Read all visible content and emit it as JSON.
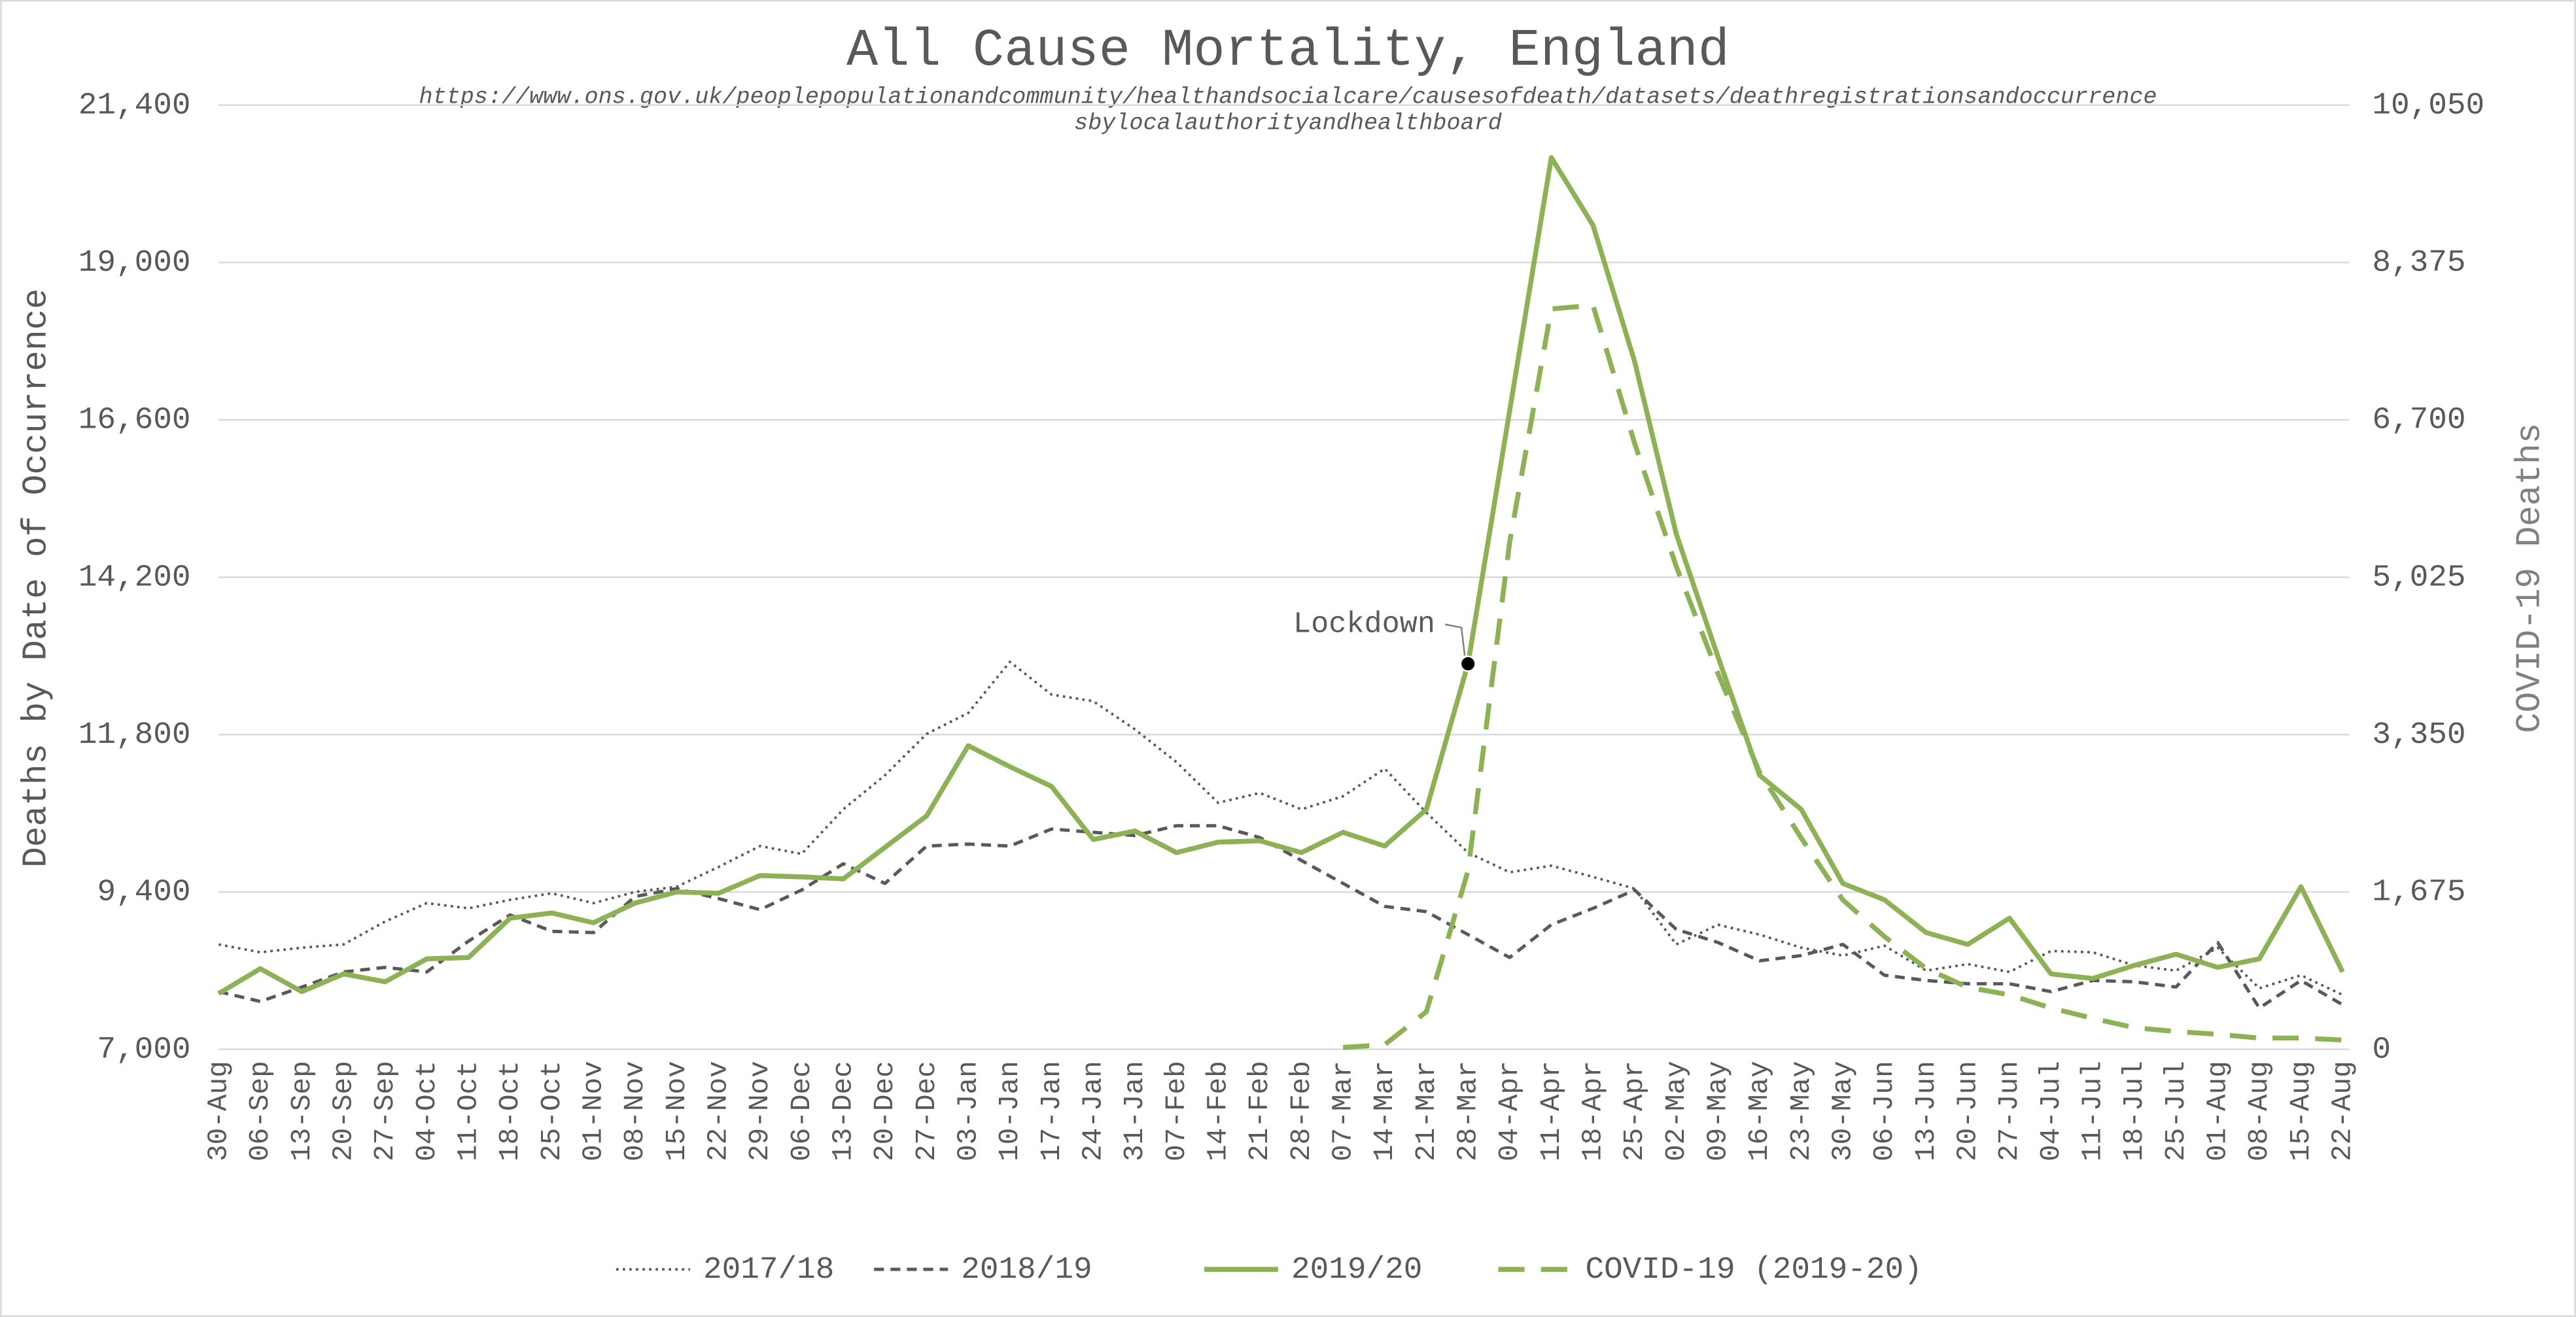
{
  "chart_data": {
    "type": "line",
    "title": "All Cause Mortality, England",
    "subtitle": [
      "https://www.ons.gov.uk/peoplepopulationandcommunity/healthandsocialcare/causesofdeath/datasets/deathregistrationsandoccurrence",
      "sbylocalauthorityandhealthboard"
    ],
    "y_label": "Deaths by Date of Occurrence",
    "y2_label": "COVID-19 Deaths",
    "categories": [
      "30-Aug",
      "06-Sep",
      "13-Sep",
      "20-Sep",
      "27-Sep",
      "04-Oct",
      "11-Oct",
      "18-Oct",
      "25-Oct",
      "01-Nov",
      "08-Nov",
      "15-Nov",
      "22-Nov",
      "29-Nov",
      "06-Dec",
      "13-Dec",
      "20-Dec",
      "27-Dec",
      "03-Jan",
      "10-Jan",
      "17-Jan",
      "24-Jan",
      "31-Jan",
      "07-Feb",
      "14-Feb",
      "21-Feb",
      "28-Feb",
      "07-Mar",
      "14-Mar",
      "21-Mar",
      "28-Mar",
      "04-Apr",
      "11-Apr",
      "18-Apr",
      "25-Apr",
      "02-May",
      "09-May",
      "16-May",
      "23-May",
      "30-May",
      "06-Jun",
      "13-Jun",
      "20-Jun",
      "27-Jun",
      "04-Jul",
      "11-Jul",
      "18-Jul",
      "25-Jul",
      "01-Aug",
      "08-Aug",
      "15-Aug",
      "22-Aug"
    ],
    "ylim": [
      7000,
      21400
    ],
    "yticks": [
      {
        "value": 7000,
        "label": "7,000"
      },
      {
        "value": 9400,
        "label": "9,400"
      },
      {
        "value": 11800,
        "label": "11,800"
      },
      {
        "value": 14200,
        "label": "14,200"
      },
      {
        "value": 16600,
        "label": "16,600"
      },
      {
        "value": 19000,
        "label": "19,000"
      },
      {
        "value": 21400,
        "label": "21,400"
      }
    ],
    "y2lim": [
      0,
      10050
    ],
    "y2ticks": [
      0,
      {
        "value": 1675,
        "label": "1,675"
      },
      {
        "value": 3350,
        "label": "3,350"
      },
      {
        "value": 5025,
        "label": "5,025"
      },
      {
        "value": 6700,
        "label": "6,700"
      },
      {
        "value": 8375,
        "label": "8,375"
      },
      {
        "value": 10050,
        "label": "10,050"
      }
    ],
    "grid": true,
    "legend": "bottom",
    "series": [
      {
        "name": "2017/18",
        "color": "#595959",
        "style": "dotted",
        "values": [
          8600,
          8480,
          8550,
          8600,
          8950,
          9230,
          9150,
          9280,
          9380,
          9230,
          9400,
          9480,
          9780,
          10100,
          9980,
          10660,
          11180,
          11810,
          12130,
          12910,
          12410,
          12310,
          11880,
          11380,
          10760,
          10910,
          10660,
          10860,
          11280,
          10610,
          10000,
          9700,
          9800,
          9630,
          9450,
          8600,
          8900,
          8750,
          8550,
          8430,
          8580,
          8200,
          8300,
          8180,
          8500,
          8480,
          8280,
          8200,
          8550,
          7930,
          8130,
          7830
        ]
      },
      {
        "name": "2018/19",
        "color": "#595959",
        "style": "dashed",
        "values": [
          7880,
          7730,
          7950,
          8180,
          8250,
          8180,
          8650,
          9050,
          8800,
          8780,
          9330,
          9450,
          9300,
          9130,
          9430,
          9830,
          9530,
          10100,
          10130,
          10100,
          10360,
          10310,
          10260,
          10410,
          10410,
          10230,
          9880,
          9530,
          9180,
          9100,
          8750,
          8400,
          8900,
          9150,
          9430,
          8830,
          8630,
          8350,
          8430,
          8600,
          8130,
          8050,
          8000,
          8000,
          7880,
          8050,
          8030,
          7950,
          8630,
          7630,
          8050,
          7680
        ]
      },
      {
        "name": "2019/20",
        "color": "#8db255",
        "style": "solid",
        "values": [
          7850,
          8230,
          7880,
          8150,
          8030,
          8380,
          8400,
          9000,
          9080,
          8930,
          9230,
          9400,
          9380,
          9650,
          9630,
          9600,
          10080,
          10560,
          11630,
          11310,
          11010,
          10200,
          10330,
          10000,
          10160,
          10180,
          10000,
          10310,
          10100,
          10660,
          12880,
          16740,
          20600,
          19570,
          17490,
          14860,
          12990,
          11180,
          10660,
          9530,
          9280,
          8780,
          8600,
          9000,
          8150,
          8080,
          8280,
          8450,
          8250,
          8380,
          9480,
          8180
        ]
      },
      {
        "name": "COVID-19 (2019-20)",
        "color": "#8db255",
        "style": "bigdash",
        "axis": "y2",
        "values": [
          null,
          null,
          null,
          null,
          null,
          null,
          null,
          null,
          null,
          null,
          null,
          null,
          null,
          null,
          null,
          null,
          null,
          null,
          null,
          null,
          null,
          null,
          null,
          null,
          null,
          null,
          null,
          20,
          50,
          400,
          1900,
          5400,
          7880,
          7920,
          6450,
          5140,
          4000,
          2950,
          2250,
          1590,
          1200,
          860,
          660,
          580,
          440,
          330,
          230,
          190,
          160,
          120,
          120,
          100
        ]
      }
    ],
    "annotations": [
      {
        "text": "Lockdown",
        "series": 2,
        "index": 30
      }
    ]
  }
}
